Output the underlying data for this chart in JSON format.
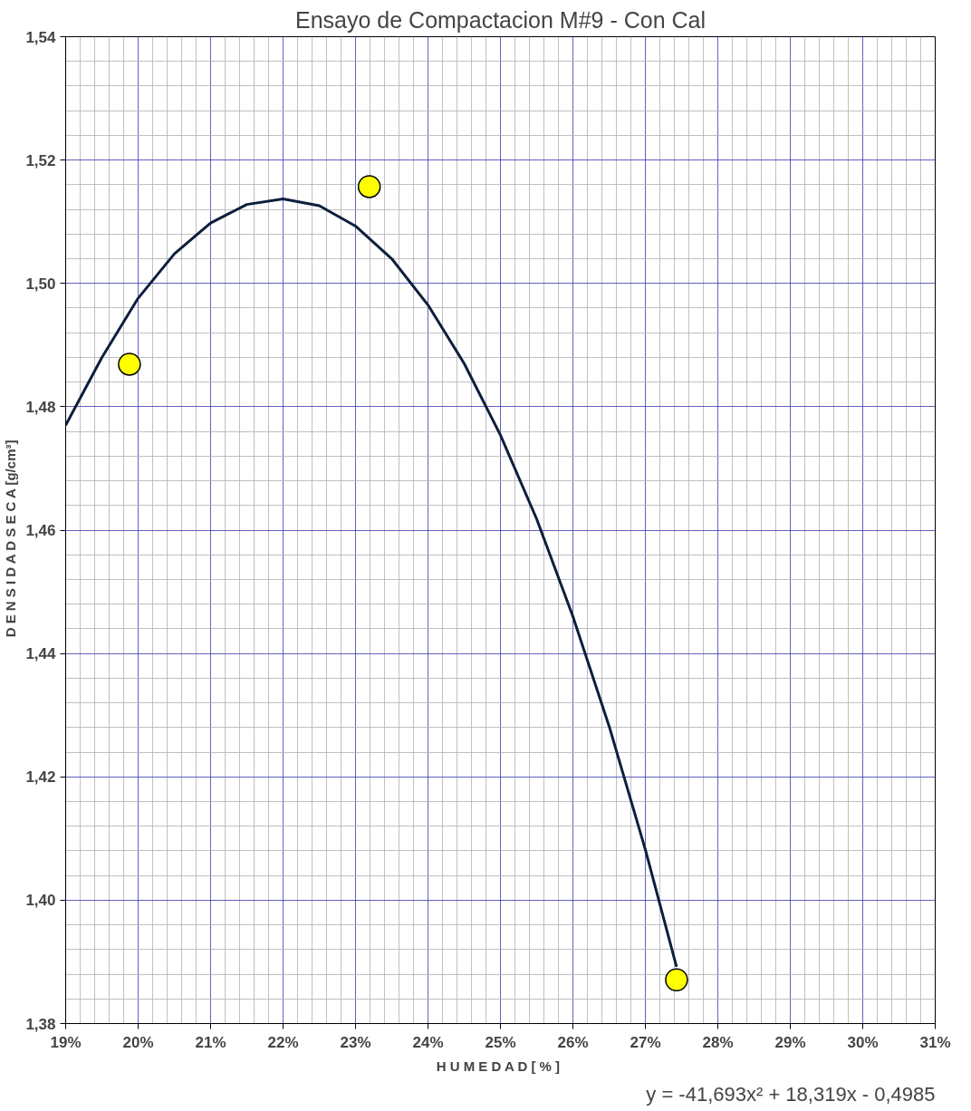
{
  "chart_data": {
    "type": "scatter",
    "title": "Ensayo de Compactacion M#9 - Con Cal",
    "xlabel": "H U M E D A D  [ % ]",
    "ylabel": "D E N S I D A D   S E C A   [g/cm³]",
    "annotations": [
      "y = -41,693x² + 18,319x - 0,4985"
    ],
    "series": [
      {
        "type": "line",
        "color": "#0d1f3c",
        "marker": "none",
        "x": [
          0.19,
          0.195,
          0.2,
          0.205,
          0.21,
          0.215,
          0.22,
          0.225,
          0.23,
          0.235,
          0.24,
          0.245,
          0.25,
          0.255,
          0.26,
          0.265,
          0.27,
          0.2743
        ],
        "values": [
          1.477,
          1.488,
          1.4976,
          1.5048,
          1.5098,
          1.5128,
          1.5137,
          1.5126,
          1.5093,
          1.504,
          1.4965,
          1.487,
          1.4754,
          1.4618,
          1.446,
          1.4282,
          1.4082,
          1.3892
        ]
      },
      {
        "color": "#ffff00",
        "marker": "circle",
        "x": [
          0.1988,
          0.2319,
          0.2743
        ],
        "values": [
          1.4869,
          1.5157,
          1.3871
        ]
      }
    ],
    "xlim": [
      0.19,
      0.31
    ],
    "ylim": [
      1.38,
      1.54
    ],
    "xticks": [
      {
        "value": 0.19,
        "label": "19%"
      },
      {
        "value": 0.2,
        "label": "20%"
      },
      {
        "value": 0.21,
        "label": "21%"
      },
      {
        "value": 0.22,
        "label": "22%"
      },
      {
        "value": 0.23,
        "label": "23%"
      },
      {
        "value": 0.24,
        "label": "24%"
      },
      {
        "value": 0.25,
        "label": "25%"
      },
      {
        "value": 0.26,
        "label": "26%"
      },
      {
        "value": 0.27,
        "label": "27%"
      },
      {
        "value": 0.28,
        "label": "28%"
      },
      {
        "value": 0.29,
        "label": "29%"
      },
      {
        "value": 0.3,
        "label": "30%"
      },
      {
        "value": 0.31,
        "label": "31%"
      }
    ],
    "yticks": [
      {
        "value": 1.38,
        "label": "1,38"
      },
      {
        "value": 1.4,
        "label": "1,40"
      },
      {
        "value": 1.42,
        "label": "1,42"
      },
      {
        "value": 1.44,
        "label": "1,44"
      },
      {
        "value": 1.46,
        "label": "1,46"
      },
      {
        "value": 1.48,
        "label": "1,48"
      },
      {
        "value": 1.5,
        "label": "1,50"
      },
      {
        "value": 1.52,
        "label": "1,52"
      },
      {
        "value": 1.54,
        "label": "1,54"
      }
    ],
    "grid": true
  }
}
